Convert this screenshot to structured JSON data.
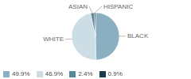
{
  "chart_data": {
    "type": "pie",
    "categories": [
      "BLACK",
      "WHITE",
      "ASIAN",
      "HISPANIC"
    ],
    "values": [
      49.9,
      46.9,
      2.4,
      0.9
    ],
    "value_labels": [
      "49.9%",
      "46.9%",
      "2.4%",
      "0.9%"
    ],
    "colors": [
      "#8aafc0",
      "#cddde6",
      "#5a8899",
      "#1a3a50"
    ],
    "legend": "lower left"
  }
}
